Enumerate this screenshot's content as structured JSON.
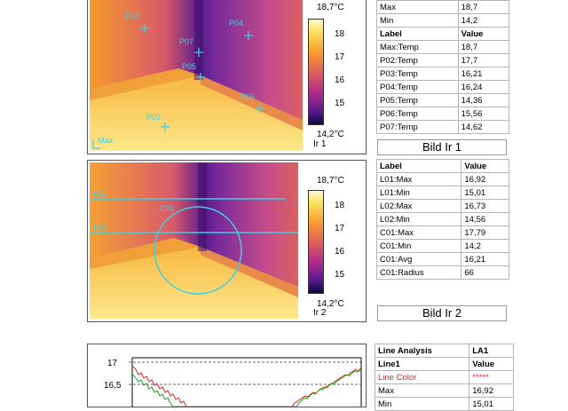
{
  "ir1": {
    "scale_max": "18,7°C",
    "scale_min": "14,2°C",
    "ticks": [
      "18",
      "17",
      "16",
      "15"
    ],
    "name": "Ir 1",
    "markers": [
      "P03",
      "P04",
      "P07",
      "P05",
      "P06",
      "P02",
      "Max"
    ]
  },
  "ir1_table": {
    "top_rows": [
      [
        "Max",
        "18,7"
      ],
      [
        "Min",
        "14,2"
      ]
    ],
    "header": [
      "Label",
      "Value"
    ],
    "rows": [
      [
        "Max:Temp",
        "18,7"
      ],
      [
        "P02:Temp",
        "17,7"
      ],
      [
        "P03:Temp",
        "16,21"
      ],
      [
        "P04:Temp",
        "16,24"
      ],
      [
        "P05:Temp",
        "14,36"
      ],
      [
        "P06:Temp",
        "15,56"
      ],
      [
        "P07:Temp",
        "14,62"
      ]
    ],
    "caption": "Bild Ir 1"
  },
  "ir2": {
    "scale_max": "18,7°C",
    "scale_min": "14,2°C",
    "ticks": [
      "18",
      "17",
      "16",
      "15"
    ],
    "name": "Ir 2",
    "overlays": [
      "L01",
      "C01",
      "L02"
    ]
  },
  "ir2_table": {
    "header": [
      "Label",
      "Value"
    ],
    "rows": [
      [
        "L01:Max",
        "16,92"
      ],
      [
        "L01:Min",
        "15,01"
      ],
      [
        "L02:Max",
        "16,73"
      ],
      [
        "L02:Min",
        "14,56"
      ],
      [
        "C01:Max",
        "17,79"
      ],
      [
        "C01:Min",
        "14,2"
      ],
      [
        "C01:Avg",
        "16,21"
      ],
      [
        "C01:Radius",
        "66"
      ]
    ],
    "caption": "Bild Ir 2"
  },
  "line_chart": {
    "y_ticks": [
      "17",
      "16,5"
    ]
  },
  "line_table": {
    "rows": [
      [
        "Line Analysis",
        "LA1"
      ],
      [
        "Line1",
        "Value"
      ],
      [
        "Line Color",
        "*****"
      ],
      [
        "Max",
        "16,92"
      ],
      [
        "Min",
        "15,01"
      ]
    ]
  },
  "colors": {
    "marker": "#3fd0e0",
    "line_red": "#dd2222",
    "line_green": "#22a022"
  }
}
